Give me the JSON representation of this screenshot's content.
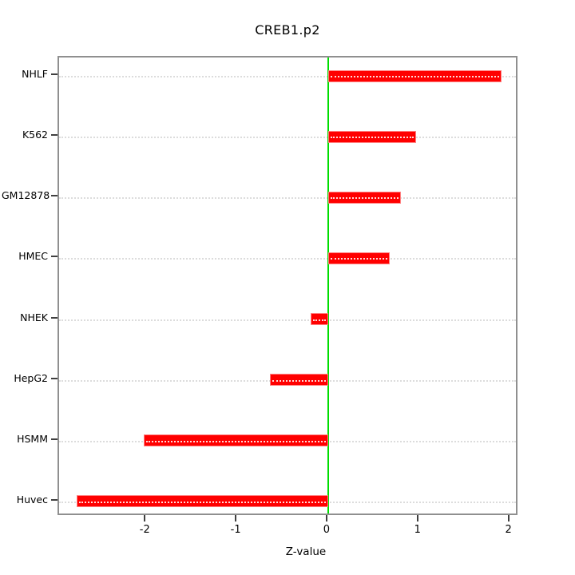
{
  "title": "CREB1.p2",
  "chart_data": {
    "type": "bar",
    "orientation": "horizontal",
    "title": "CREB1.p2",
    "xlabel": "Z-value",
    "ylabel": "",
    "categories": [
      "NHLF",
      "K562",
      "GM12878",
      "HMEC",
      "NHEK",
      "HepG2",
      "HSMM",
      "Huvec"
    ],
    "values": [
      1.91,
      0.97,
      0.8,
      0.68,
      -0.19,
      -0.64,
      -2.03,
      -2.77
    ],
    "xlim": [
      -2.96,
      2.1
    ],
    "x_ticks": [
      "-2",
      "-1",
      "0",
      "1",
      "2"
    ],
    "x_tick_values": [
      -2,
      -1,
      0,
      1,
      2
    ],
    "grid": "horizontal dotted line per category",
    "legend": "none",
    "bar_color": "#ff0000",
    "bar_border_color": "#ff8080",
    "zero_line_color": "#00dd00",
    "grid_color": "#dcdcdc",
    "box_border_color": "#8f8f8f"
  }
}
